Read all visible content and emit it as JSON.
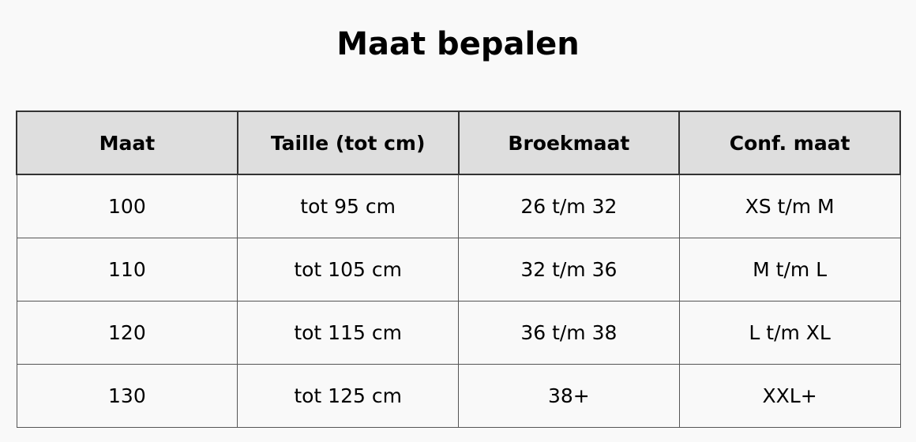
{
  "title": "Maat bepalen",
  "headers": [
    "Maat",
    "Taille (tot cm)",
    "Broekmaat",
    "Conf. maat"
  ],
  "rows": [
    [
      "100",
      "tot 95 cm",
      "26 t/m 32",
      "XS t/m M"
    ],
    [
      "110",
      "tot 105 cm",
      "32 t/m 36",
      "M t/m L"
    ],
    [
      "120",
      "tot 115 cm",
      "36 t/m 38",
      "L t/m XL"
    ],
    [
      "130",
      "tot 125 cm",
      "38+",
      "XXL+"
    ]
  ]
}
